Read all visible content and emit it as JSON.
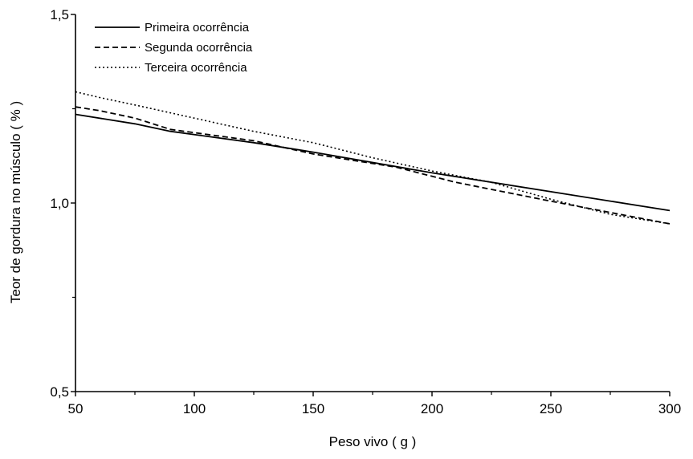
{
  "chart_data": {
    "type": "line",
    "xlabel": "Peso vivo ( g )",
    "ylabel": "Teor de gordura no músculo ( % )",
    "xlim": [
      50,
      300
    ],
    "ylim": [
      0.5,
      1.5
    ],
    "x_ticks": [
      50,
      100,
      150,
      200,
      250,
      300
    ],
    "x_tick_labels": [
      "50",
      "100",
      "150",
      "200",
      "250",
      "300"
    ],
    "y_ticks": [
      0.5,
      1.0,
      1.5
    ],
    "y_tick_labels": [
      "0,5",
      "1,0",
      "1,5"
    ],
    "legend_position": "top-left",
    "grid": false,
    "series": [
      {
        "name": "Primeira ocorrência",
        "style": "solid",
        "x": [
          50,
          75,
          90,
          125,
          150,
          200,
          250,
          300
        ],
        "y": [
          1.235,
          1.21,
          1.19,
          1.16,
          1.135,
          1.08,
          1.03,
          0.98
        ]
      },
      {
        "name": "Segunda ocorrência",
        "style": "dashed",
        "x": [
          50,
          60,
          75,
          90,
          125,
          150,
          185,
          210,
          250,
          300
        ],
        "y": [
          1.255,
          1.245,
          1.225,
          1.195,
          1.165,
          1.13,
          1.095,
          1.055,
          1.005,
          0.945
        ]
      },
      {
        "name": "Terceira ocorrência",
        "style": "dotted",
        "x": [
          50,
          60,
          75,
          100,
          125,
          150,
          175,
          200,
          225,
          250,
          275,
          300
        ],
        "y": [
          1.295,
          1.28,
          1.26,
          1.225,
          1.19,
          1.16,
          1.12,
          1.085,
          1.055,
          1.01,
          0.97,
          0.945
        ]
      }
    ]
  }
}
